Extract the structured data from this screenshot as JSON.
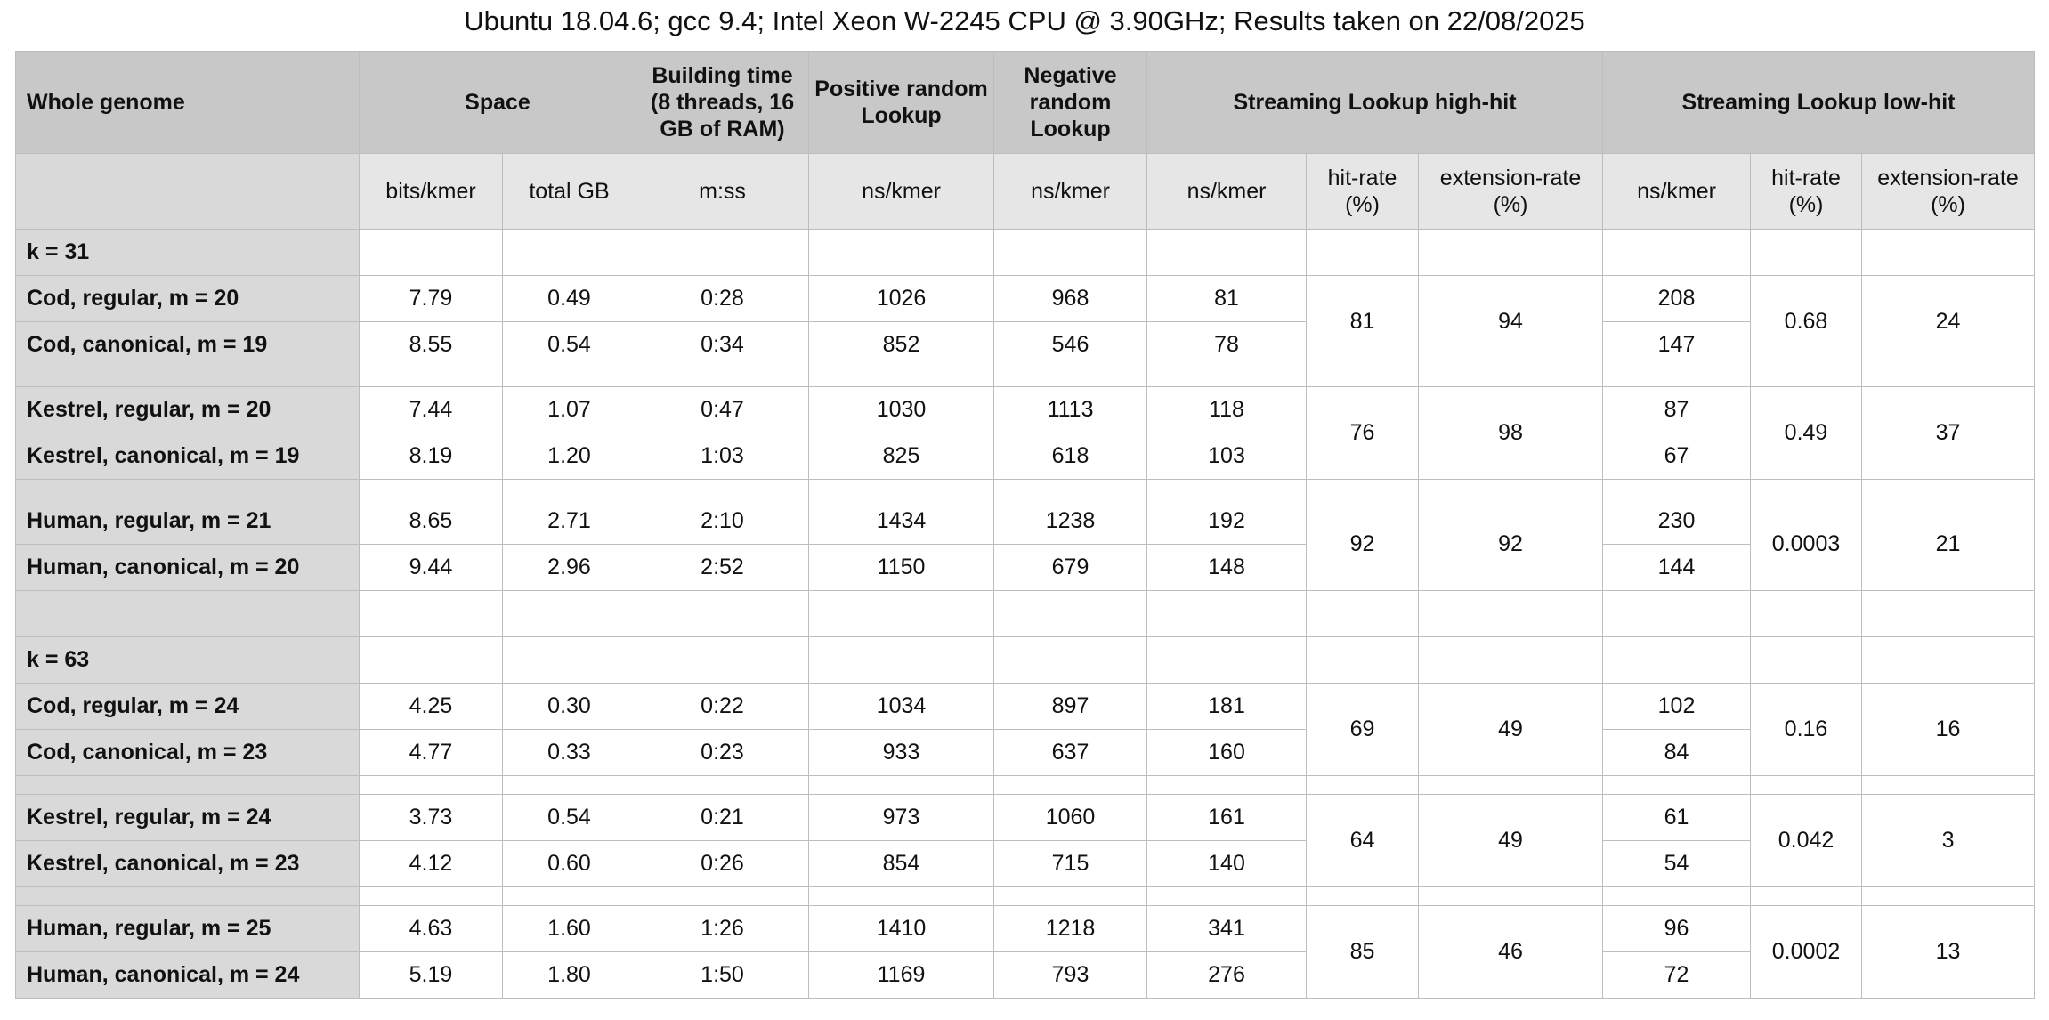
{
  "title": "Ubuntu 18.04.6; gcc 9.4; Intel Xeon W-2245 CPU @ 3.90GHz; Results taken on 22/08/2025",
  "header": {
    "whole_genome": "Whole genome",
    "space": "Space",
    "building_time": "Building time (8 threads, 16 GB of RAM)",
    "positive_lookup": "Positive random Lookup",
    "negative_lookup": "Negative random Lookup",
    "streaming_high": "Streaming Lookup high-hit",
    "streaming_low": "Streaming Lookup low-hit"
  },
  "units": [
    "bits/kmer",
    "total GB",
    "m:ss",
    "ns/kmer",
    "ns/kmer",
    "ns/kmer",
    "hit-rate (%)",
    "extension-rate (%)",
    "ns/kmer",
    "hit-rate (%)",
    "extension-rate (%)"
  ],
  "sections": [
    {
      "k_label": "k = 31",
      "groups": [
        {
          "rows": [
            {
              "label": "Cod, regular, m = 20",
              "bits": "7.79",
              "gb": "0.49",
              "time": "0:28",
              "pos": "1026",
              "neg": "968",
              "high_ns": "81",
              "low_ns": "208"
            },
            {
              "label": "Cod, canonical, m = 19",
              "bits": "8.55",
              "gb": "0.54",
              "time": "0:34",
              "pos": "852",
              "neg": "546",
              "high_ns": "78",
              "low_ns": "147"
            }
          ],
          "high_hit": "81",
          "high_ext": "94",
          "low_hit": "0.68",
          "low_ext": "24"
        },
        {
          "rows": [
            {
              "label": "Kestrel, regular, m = 20",
              "bits": "7.44",
              "gb": "1.07",
              "time": "0:47",
              "pos": "1030",
              "neg": "1113",
              "high_ns": "118",
              "low_ns": "87"
            },
            {
              "label": "Kestrel, canonical, m = 19",
              "bits": "8.19",
              "gb": "1.20",
              "time": "1:03",
              "pos": "825",
              "neg": "618",
              "high_ns": "103",
              "low_ns": "67"
            }
          ],
          "high_hit": "76",
          "high_ext": "98",
          "low_hit": "0.49",
          "low_ext": "37"
        },
        {
          "rows": [
            {
              "label": "Human, regular, m = 21",
              "bits": "8.65",
              "gb": "2.71",
              "time": "2:10",
              "pos": "1434",
              "neg": "1238",
              "high_ns": "192",
              "low_ns": "230"
            },
            {
              "label": "Human, canonical, m = 20",
              "bits": "9.44",
              "gb": "2.96",
              "time": "2:52",
              "pos": "1150",
              "neg": "679",
              "high_ns": "148",
              "low_ns": "144"
            }
          ],
          "high_hit": "92",
          "high_ext": "92",
          "low_hit": "0.0003",
          "low_ext": "21"
        }
      ]
    },
    {
      "k_label": "k = 63",
      "groups": [
        {
          "rows": [
            {
              "label": "Cod, regular, m = 24",
              "bits": "4.25",
              "gb": "0.30",
              "time": "0:22",
              "pos": "1034",
              "neg": "897",
              "high_ns": "181",
              "low_ns": "102"
            },
            {
              "label": "Cod, canonical, m = 23",
              "bits": "4.77",
              "gb": "0.33",
              "time": "0:23",
              "pos": "933",
              "neg": "637",
              "high_ns": "160",
              "low_ns": "84"
            }
          ],
          "high_hit": "69",
          "high_ext": "49",
          "low_hit": "0.16",
          "low_ext": "16"
        },
        {
          "rows": [
            {
              "label": "Kestrel, regular, m = 24",
              "bits": "3.73",
              "gb": "0.54",
              "time": "0:21",
              "pos": "973",
              "neg": "1060",
              "high_ns": "161",
              "low_ns": "61"
            },
            {
              "label": "Kestrel, canonical, m = 23",
              "bits": "4.12",
              "gb": "0.60",
              "time": "0:26",
              "pos": "854",
              "neg": "715",
              "high_ns": "140",
              "low_ns": "54"
            }
          ],
          "high_hit": "64",
          "high_ext": "49",
          "low_hit": "0.042",
          "low_ext": "3"
        },
        {
          "rows": [
            {
              "label": "Human, regular, m = 25",
              "bits": "4.63",
              "gb": "1.60",
              "time": "1:26",
              "pos": "1410",
              "neg": "1218",
              "high_ns": "341",
              "low_ns": "96"
            },
            {
              "label": "Human, canonical, m = 24",
              "bits": "5.19",
              "gb": "1.80",
              "time": "1:50",
              "pos": "1169",
              "neg": "793",
              "high_ns": "276",
              "low_ns": "72"
            }
          ],
          "high_hit": "85",
          "high_ext": "46",
          "low_hit": "0.0002",
          "low_ext": "13"
        }
      ]
    }
  ]
}
